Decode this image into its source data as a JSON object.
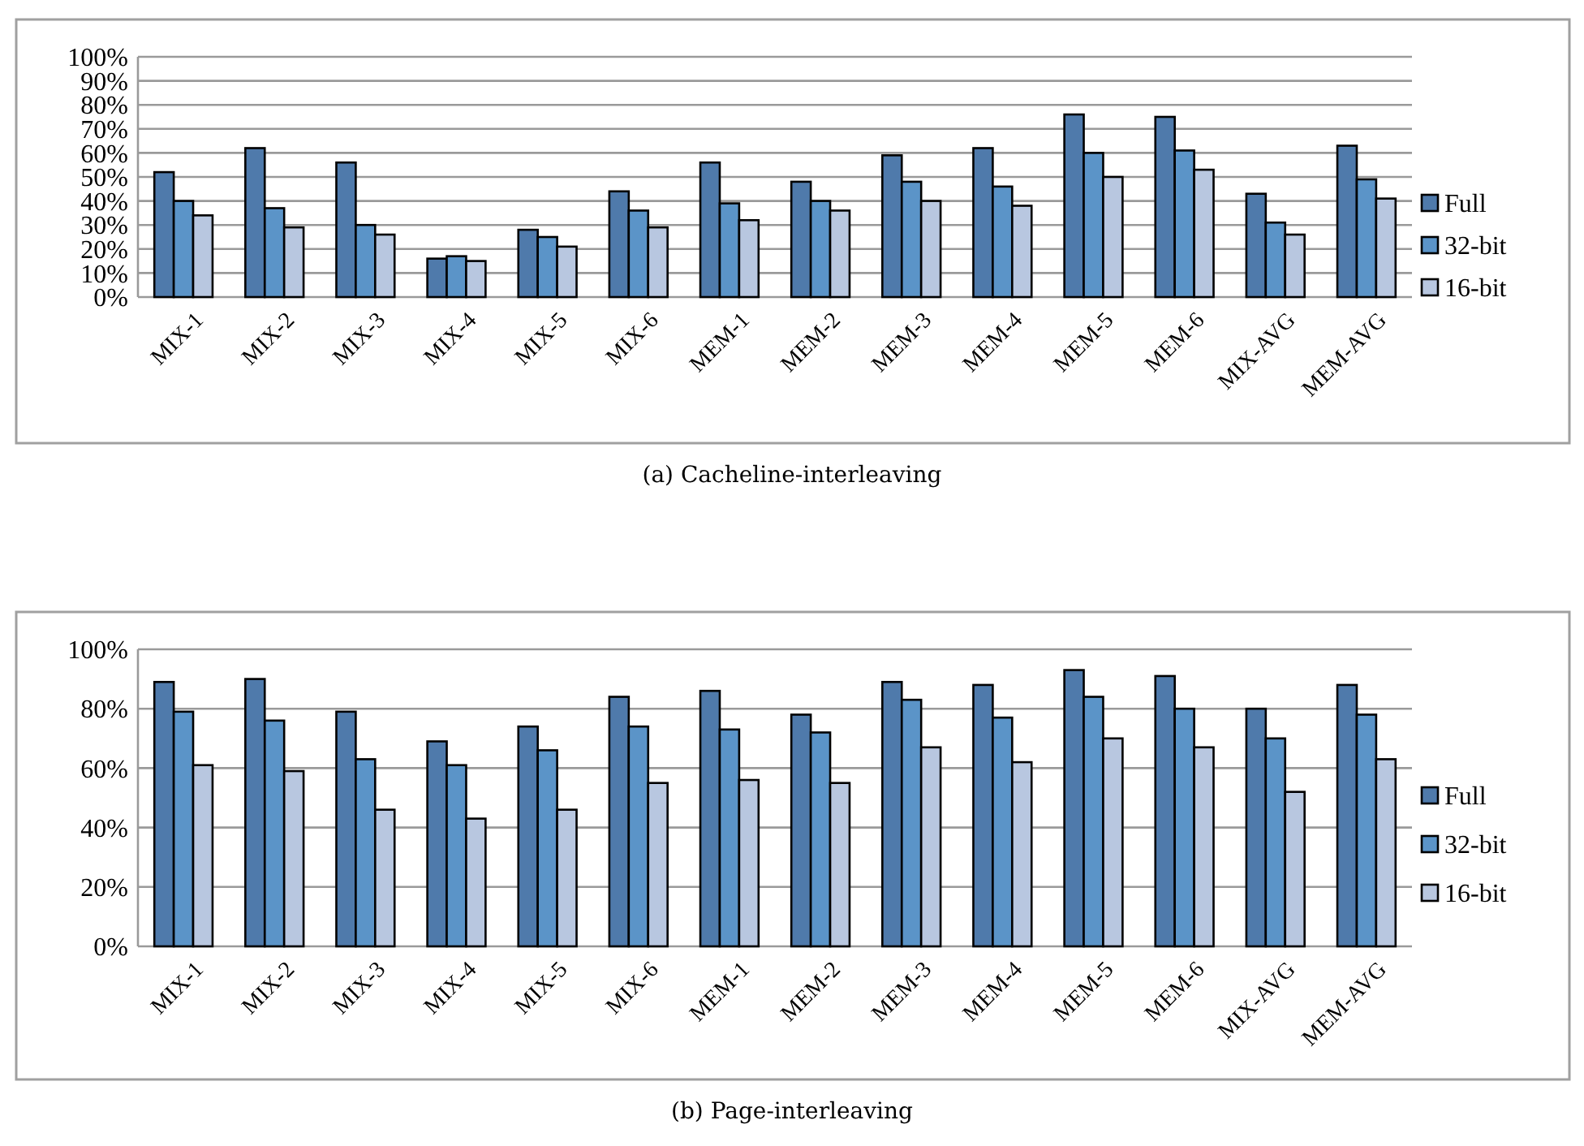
{
  "chart_data": [
    {
      "type": "bar",
      "title": "(a) Cacheline-interleaving",
      "categories": [
        "MIX-1",
        "MIX-2",
        "MIX-3",
        "MIX-4",
        "MIX-5",
        "MIX-6",
        "MEM-1",
        "MEM-2",
        "MEM-3",
        "MEM-4",
        "MEM-5",
        "MEM-6",
        "MIX-AVG",
        "MEM-AVG"
      ],
      "series": [
        {
          "name": "Full",
          "color": "#4f7aab",
          "values": [
            52,
            62,
            56,
            16,
            28,
            44,
            56,
            48,
            59,
            62,
            76,
            75,
            43,
            63
          ]
        },
        {
          "name": "32-bit",
          "color": "#5b94c8",
          "values": [
            40,
            37,
            30,
            17,
            25,
            36,
            39,
            40,
            48,
            46,
            60,
            61,
            31,
            49
          ]
        },
        {
          "name": "16-bit",
          "color": "#b8c7e0",
          "values": [
            34,
            29,
            26,
            15,
            21,
            29,
            32,
            36,
            40,
            38,
            50,
            53,
            26,
            41
          ]
        }
      ],
      "ylim": [
        0,
        100
      ],
      "yticks": [
        {
          "value": 0,
          "label": "0%"
        },
        {
          "value": 10,
          "label": "10%"
        },
        {
          "value": 20,
          "label": "20%"
        },
        {
          "value": 30,
          "label": "30%"
        },
        {
          "value": 40,
          "label": "40%"
        },
        {
          "value": 50,
          "label": "50%"
        },
        {
          "value": 60,
          "label": "60%"
        },
        {
          "value": 70,
          "label": "70%"
        },
        {
          "value": 80,
          "label": "80%"
        },
        {
          "value": 90,
          "label": "90%"
        },
        {
          "value": 100,
          "label": "100%"
        }
      ],
      "grid": "y",
      "legend": "right"
    },
    {
      "type": "bar",
      "title": "(b) Page-interleaving",
      "categories": [
        "MIX-1",
        "MIX-2",
        "MIX-3",
        "MIX-4",
        "MIX-5",
        "MIX-6",
        "MEM-1",
        "MEM-2",
        "MEM-3",
        "MEM-4",
        "MEM-5",
        "MEM-6",
        "MIX-AVG",
        "MEM-AVG"
      ],
      "series": [
        {
          "name": "Full",
          "color": "#4f7aab",
          "values": [
            89,
            90,
            79,
            69,
            74,
            84,
            86,
            78,
            89,
            88,
            93,
            91,
            80,
            88
          ]
        },
        {
          "name": "32-bit",
          "color": "#5b94c8",
          "values": [
            79,
            76,
            63,
            61,
            66,
            74,
            73,
            72,
            83,
            77,
            84,
            80,
            70,
            78
          ]
        },
        {
          "name": "16-bit",
          "color": "#b8c7e0",
          "values": [
            61,
            59,
            46,
            43,
            46,
            55,
            56,
            55,
            67,
            62,
            70,
            67,
            52,
            63
          ]
        }
      ],
      "ylim": [
        0,
        100
      ],
      "yticks": [
        {
          "value": 0,
          "label": "0%"
        },
        {
          "value": 20,
          "label": "20%"
        },
        {
          "value": 40,
          "label": "40%"
        },
        {
          "value": 60,
          "label": "60%"
        },
        {
          "value": 80,
          "label": "80%"
        },
        {
          "value": 100,
          "label": "100%"
        }
      ],
      "grid": "y",
      "legend": "right"
    }
  ]
}
